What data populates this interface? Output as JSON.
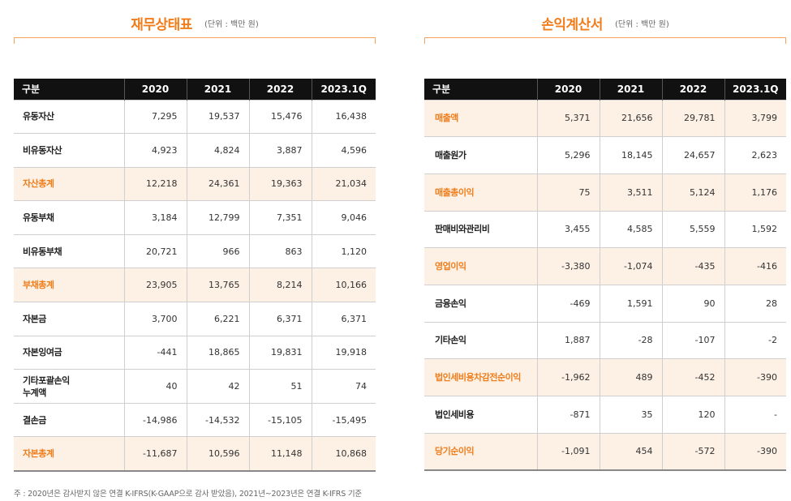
{
  "balance_sheet": {
    "title": "재무상태표",
    "unit": "(단위 : 백만 원)",
    "headers": [
      "구분",
      "2020",
      "2021",
      "2022",
      "2023.1Q"
    ],
    "rows": [
      {
        "label": "유동자산",
        "values": [
          "7,295",
          "19,537",
          "15,476",
          "16,438"
        ],
        "highlight": false
      },
      {
        "label": "비유동자산",
        "values": [
          "4,923",
          "4,824",
          "3,887",
          "4,596"
        ],
        "highlight": false
      },
      {
        "label": "자산총계",
        "values": [
          "12,218",
          "24,361",
          "19,363",
          "21,034"
        ],
        "highlight": true
      },
      {
        "label": "유동부채",
        "values": [
          "3,184",
          "12,799",
          "7,351",
          "9,046"
        ],
        "highlight": false
      },
      {
        "label": "비유동부채",
        "values": [
          "20,721",
          "966",
          "863",
          "1,120"
        ],
        "highlight": false
      },
      {
        "label": "부채총계",
        "values": [
          "23,905",
          "13,765",
          "8,214",
          "10,166"
        ],
        "highlight": true
      },
      {
        "label": "자본금",
        "values": [
          "3,700",
          "6,221",
          "6,371",
          "6,371"
        ],
        "highlight": false
      },
      {
        "label": "자본잉여금",
        "values": [
          "-441",
          "18,865",
          "19,831",
          "19,918"
        ],
        "highlight": false
      },
      {
        "label": "기타포괄손익\n누계액",
        "values": [
          "40",
          "42",
          "51",
          "74"
        ],
        "highlight": false
      },
      {
        "label": "결손금",
        "values": [
          "-14,986",
          "-14,532",
          "-15,105",
          "-15,495"
        ],
        "highlight": false
      },
      {
        "label": "자본총계",
        "values": [
          "-11,687",
          "10,596",
          "11,148",
          "10,868"
        ],
        "highlight": true
      }
    ]
  },
  "income_statement": {
    "title": "손익계산서",
    "unit": "(단위 : 백만 원)",
    "headers": [
      "구분",
      "2020",
      "2021",
      "2022",
      "2023.1Q"
    ],
    "rows": [
      {
        "label": "매출액",
        "values": [
          "5,371",
          "21,656",
          "29,781",
          "3,799"
        ],
        "highlight": true
      },
      {
        "label": "매출원가",
        "values": [
          "5,296",
          "18,145",
          "24,657",
          "2,623"
        ],
        "highlight": false
      },
      {
        "label": "매출총이익",
        "values": [
          "75",
          "3,511",
          "5,124",
          "1,176"
        ],
        "highlight": true
      },
      {
        "label": "판매비와관리비",
        "values": [
          "3,455",
          "4,585",
          "5,559",
          "1,592"
        ],
        "highlight": false
      },
      {
        "label": "영업이익",
        "values": [
          "-3,380",
          "-1,074",
          "-435",
          "-416"
        ],
        "highlight": true
      },
      {
        "label": "금융손익",
        "values": [
          "-469",
          "1,591",
          "90",
          "28"
        ],
        "highlight": false
      },
      {
        "label": "기타손익",
        "values": [
          "1,887",
          "-28",
          "-107",
          "-2"
        ],
        "highlight": false
      },
      {
        "label": "법인세비용차감전순이익",
        "values": [
          "-1,962",
          "489",
          "-452",
          "-390"
        ],
        "highlight": true
      },
      {
        "label": "법인세비용",
        "values": [
          "-871",
          "35",
          "120",
          "-"
        ],
        "highlight": false
      },
      {
        "label": "당기순이익",
        "values": [
          "-1,091",
          "454",
          "-572",
          "-390"
        ],
        "highlight": true
      }
    ]
  },
  "footnote": "주 : 2020년은 감사받지 않은 연결 K-IFRS(K-GAAP으로 감사 받았음), 2021년~2023년은 연결 K-IFRS 기준",
  "colors": {
    "accent": "#f07d1a",
    "header_bg": "#111111",
    "highlight_bg": "#fdf1e6"
  }
}
